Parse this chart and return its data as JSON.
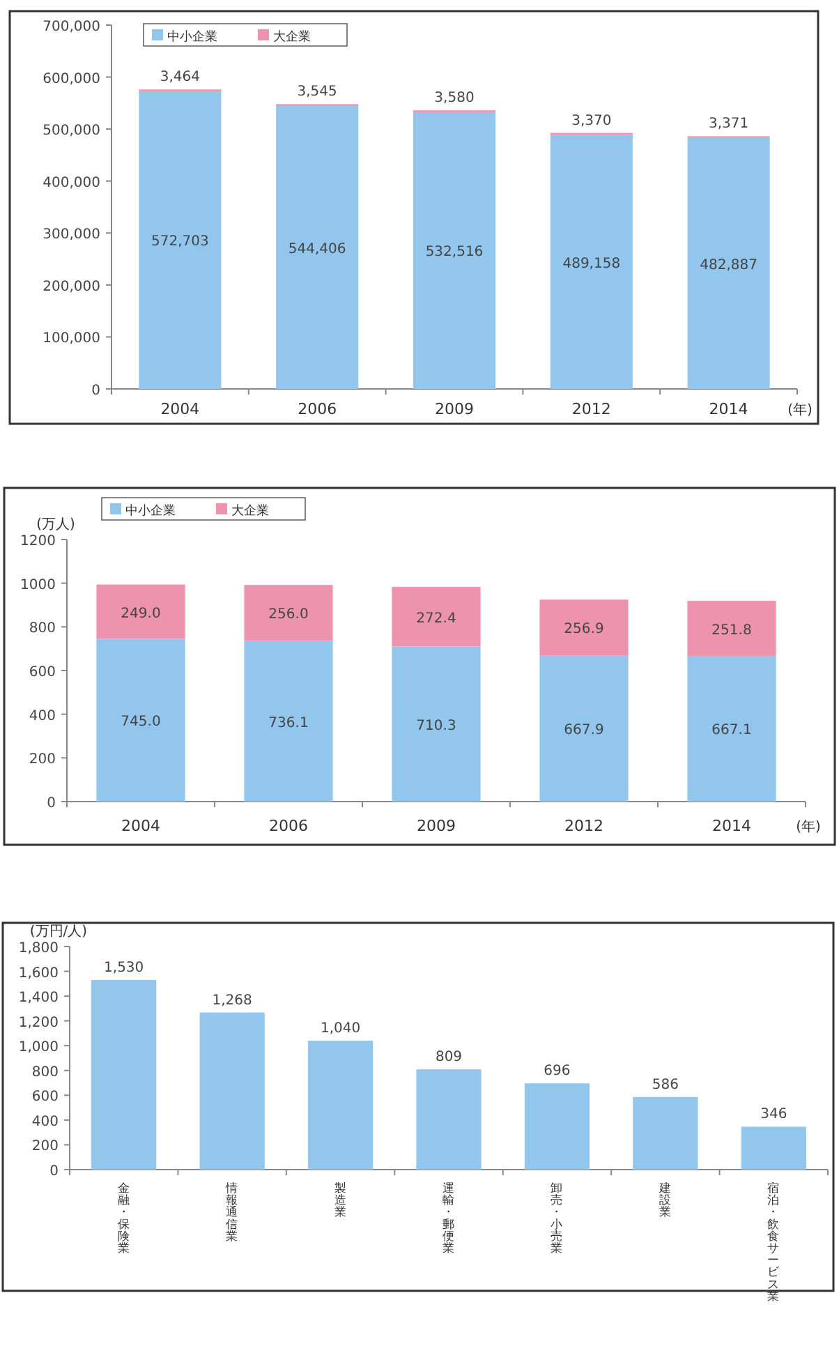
{
  "chart_data": [
    {
      "type": "bar",
      "stacked": true,
      "xlabel": "(年)",
      "categories": [
        "2004",
        "2006",
        "2009",
        "2012",
        "2014"
      ],
      "series": [
        {
          "name": "中小企業",
          "color": "#92c6ec",
          "values": [
            572703,
            544406,
            532516,
            489158,
            482887
          ],
          "value_labels": [
            "572,703",
            "544,406",
            "532,516",
            "489,158",
            "482,887"
          ]
        },
        {
          "name": "大企業",
          "color": "#ee93ae",
          "values": [
            3464,
            3545,
            3580,
            3370,
            3371
          ],
          "value_labels": [
            "3,464",
            "3,545",
            "3,580",
            "3,370",
            "3,371"
          ]
        }
      ],
      "ylim": [
        0,
        700000
      ],
      "yticks": [
        0,
        {
          "value": 100000,
          "label": "100,000"
        },
        {
          "value": 200000,
          "label": "200,000"
        },
        {
          "value": 300000,
          "label": "300,000"
        },
        {
          "value": 400000,
          "label": "400,000"
        },
        {
          "value": 500000,
          "label": "500,000"
        },
        {
          "value": 600000,
          "label": "600,000"
        },
        {
          "value": 700000,
          "label": "700,000"
        }
      ],
      "legend": "top left",
      "grid": false
    },
    {
      "type": "bar",
      "stacked": true,
      "xlabel": "(年)",
      "ylabel": "(万人)",
      "categories": [
        "2004",
        "2006",
        "2009",
        "2012",
        "2014"
      ],
      "series": [
        {
          "name": "中小企業",
          "color": "#92c6ec",
          "values": [
            745.0,
            736.1,
            710.3,
            667.9,
            667.1
          ],
          "value_labels": [
            "745.0",
            "736.1",
            "710.3",
            "667.9",
            "667.1"
          ]
        },
        {
          "name": "大企業",
          "color": "#ee93ae",
          "values": [
            249.0,
            256.0,
            272.4,
            256.9,
            251.8
          ],
          "value_labels": [
            "249.0",
            "256.0",
            "272.4",
            "256.9",
            "251.8"
          ]
        }
      ],
      "ylim": [
        0,
        1200
      ],
      "yticks": [
        0,
        200,
        400,
        600,
        800,
        1000,
        1200
      ],
      "legend": "top left",
      "grid": false
    },
    {
      "type": "bar",
      "ylabel": "(万円/人)",
      "categories": [
        "金融・保険業",
        "情報通信業",
        "製造業",
        "運輸・郵便業",
        "卸売・小売業",
        "建設業",
        "宿泊・飲食サービス業"
      ],
      "series": [
        {
          "color": "#92c6ec",
          "values": [
            1530,
            1268,
            1040,
            809,
            696,
            586,
            346
          ],
          "value_labels": [
            "1,530",
            "1,268",
            "1,040",
            "809",
            "696",
            "586",
            "346"
          ]
        }
      ],
      "ylim": [
        0,
        1800
      ],
      "yticks": [
        0,
        {
          "value": 200,
          "label": "200"
        },
        {
          "value": 400,
          "label": "400"
        },
        {
          "value": 600,
          "label": "600"
        },
        {
          "value": 800,
          "label": "800"
        },
        {
          "value": 1000,
          "label": "1,000"
        },
        {
          "value": 1200,
          "label": "1,200"
        },
        {
          "value": 1400,
          "label": "1,400"
        },
        {
          "value": 1600,
          "label": "1,600"
        },
        {
          "value": 1800,
          "label": "1,800"
        }
      ],
      "legend": false,
      "grid": false
    }
  ]
}
